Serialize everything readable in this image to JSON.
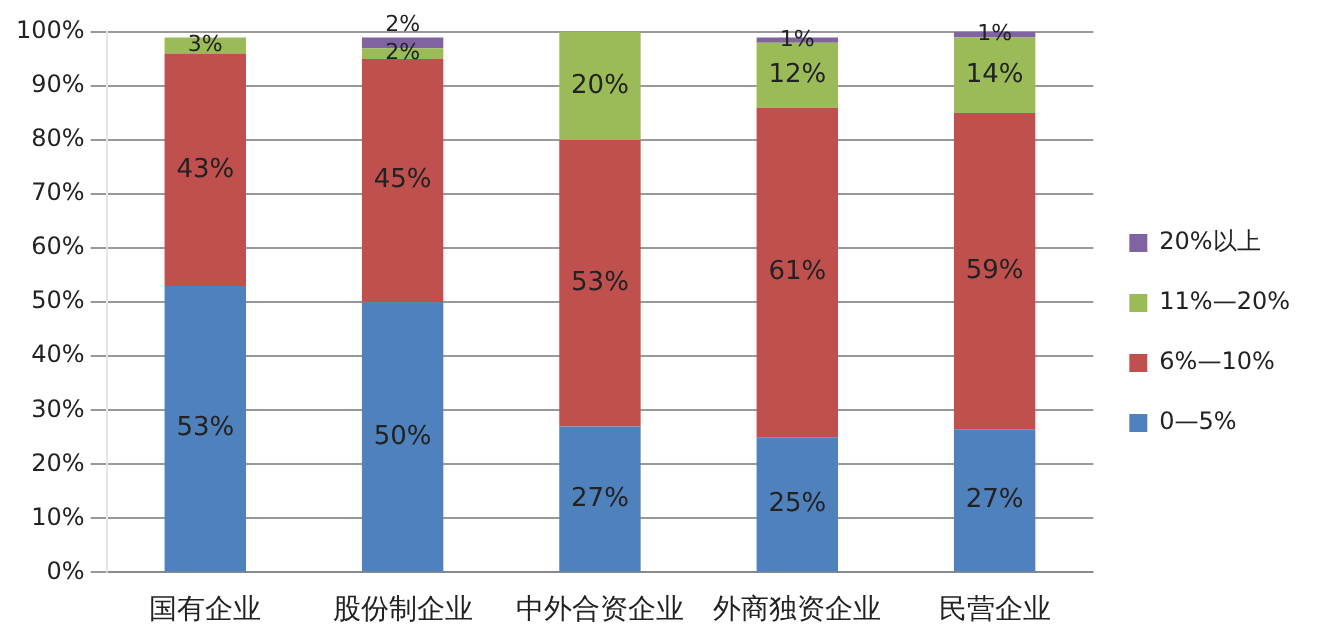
{
  "chart_data": {
    "type": "bar",
    "stacked": true,
    "categories": [
      "国有企业",
      "股份制企业",
      "中外合资企业",
      "外商独资企业",
      "民营企业"
    ],
    "ylim": [
      0,
      100
    ],
    "yticks": [
      {
        "value": 0,
        "label": "0%"
      },
      {
        "value": 10,
        "label": "10%"
      },
      {
        "value": 20,
        "label": "20%"
      },
      {
        "value": 30,
        "label": "30%"
      },
      {
        "value": 40,
        "label": "40%"
      },
      {
        "value": 50,
        "label": "50%"
      },
      {
        "value": 60,
        "label": "60%"
      },
      {
        "value": 70,
        "label": "70%"
      },
      {
        "value": 80,
        "label": "80%"
      },
      {
        "value": 90,
        "label": "90%"
      },
      {
        "value": 100,
        "label": "100%"
      }
    ],
    "grid": "y",
    "legend": "right",
    "series": [
      {
        "name": "0—5%",
        "color": "#4f81bd",
        "values": [
          53,
          50,
          27,
          25,
          26.5
        ],
        "value_labels": [
          "53%",
          "50%",
          "27%",
          "25%",
          "27%"
        ]
      },
      {
        "name": "6%—10%",
        "color": "#c0504d",
        "values": [
          43,
          45,
          53,
          61,
          58.5
        ],
        "value_labels": [
          "43%",
          "45%",
          "53%",
          "61%",
          "59%"
        ]
      },
      {
        "name": "11%—20%",
        "color": "#9bbb59",
        "values": [
          3,
          2,
          20,
          12,
          14
        ],
        "value_labels": [
          "3%",
          "2%",
          "20%",
          "12%",
          "14%"
        ]
      },
      {
        "name": "20%以上",
        "color": "#8064a2",
        "values": [
          null,
          2,
          null,
          1,
          1
        ],
        "value_labels": [
          null,
          "2%",
          null,
          "1%",
          "1%"
        ]
      }
    ]
  }
}
